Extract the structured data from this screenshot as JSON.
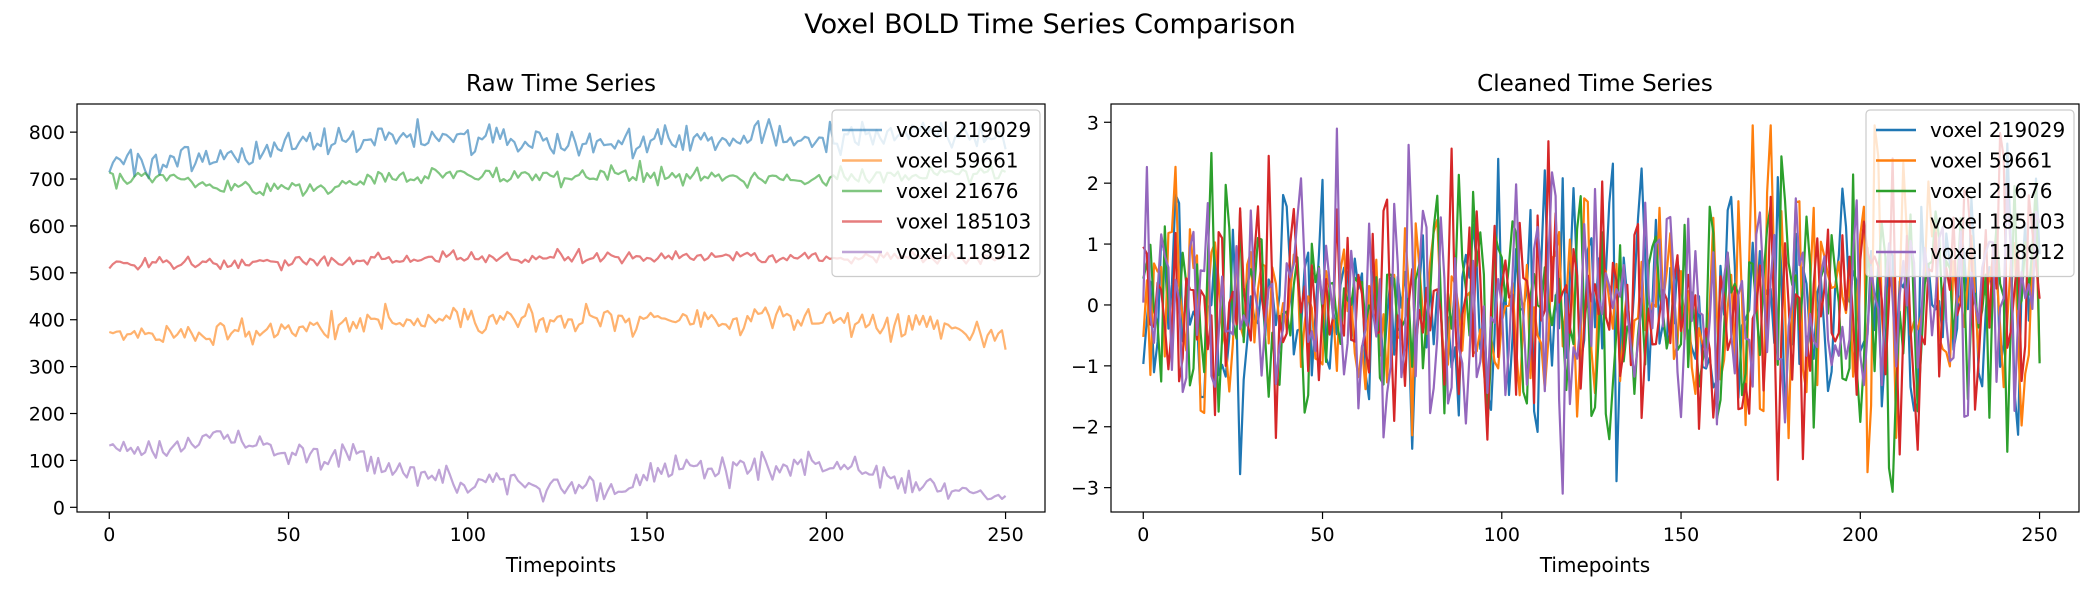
{
  "suptitle": "Voxel BOLD Time Series Comparison",
  "chart_data": [
    {
      "type": "line",
      "title": "Raw Time Series",
      "xlabel": "Timepoints",
      "ylabel": "",
      "xlim": [
        -9,
        261
      ],
      "ylim": [
        -10,
        860
      ],
      "x_ticks": [
        0,
        50,
        100,
        150,
        200,
        250
      ],
      "y_ticks": [
        0,
        100,
        200,
        300,
        400,
        500,
        600,
        700,
        800
      ],
      "n_timepoints": 251,
      "line_alpha": 0.6,
      "legend_position": "upper right",
      "series": [
        {
          "name": "voxel 219029",
          "color": "#1f77b4",
          "mean": 775,
          "noise": 16,
          "trend": [
            [
              0,
              738
            ],
            [
              20,
              735
            ],
            [
              40,
              745
            ],
            [
              50,
              780
            ],
            [
              75,
              790
            ],
            [
              100,
              790
            ],
            [
              125,
              775
            ],
            [
              150,
              780
            ],
            [
              175,
              785
            ],
            [
              200,
              790
            ],
            [
              225,
              795
            ],
            [
              250,
              790
            ]
          ]
        },
        {
          "name": "voxel 59661",
          "color": "#ff7f0e",
          "mean": 390,
          "noise": 13,
          "trend": [
            [
              0,
              368
            ],
            [
              25,
              368
            ],
            [
              50,
              378
            ],
            [
              75,
              395
            ],
            [
              100,
              402
            ],
            [
              125,
              400
            ],
            [
              150,
              402
            ],
            [
              175,
              402
            ],
            [
              200,
              400
            ],
            [
              225,
              392
            ],
            [
              250,
              370
            ]
          ]
        },
        {
          "name": "voxel 21676",
          "color": "#2ca02c",
          "mean": 700,
          "noise": 9,
          "trend": [
            [
              0,
              706
            ],
            [
              20,
              698
            ],
            [
              40,
              680
            ],
            [
              60,
              682
            ],
            [
              75,
              705
            ],
            [
              100,
              712
            ],
            [
              125,
              705
            ],
            [
              150,
              706
            ],
            [
              175,
              700
            ],
            [
              200,
              700
            ],
            [
              225,
              705
            ],
            [
              250,
              715
            ]
          ]
        },
        {
          "name": "voxel 185103",
          "color": "#d62728",
          "mean": 528,
          "noise": 7,
          "trend": [
            [
              0,
              520
            ],
            [
              25,
              520
            ],
            [
              50,
              525
            ],
            [
              100,
              530
            ],
            [
              150,
              533
            ],
            [
              200,
              532
            ],
            [
              250,
              532
            ]
          ]
        },
        {
          "name": "voxel 118912",
          "color": "#9467bd",
          "mean": 85,
          "noise": 14,
          "trend": [
            [
              0,
              118
            ],
            [
              15,
              125
            ],
            [
              30,
              140
            ],
            [
              45,
              115
            ],
            [
              70,
              110
            ],
            [
              80,
              75
            ],
            [
              100,
              55
            ],
            [
              125,
              45
            ],
            [
              145,
              40
            ],
            [
              150,
              80
            ],
            [
              175,
              85
            ],
            [
              200,
              90
            ],
            [
              220,
              60
            ],
            [
              235,
              35
            ],
            [
              250,
              20
            ]
          ]
        }
      ]
    },
    {
      "type": "line",
      "title": "Cleaned Time Series",
      "xlabel": "Timepoints",
      "ylabel": "",
      "xlim": [
        -9,
        261
      ],
      "ylim": [
        -3.4,
        3.3
      ],
      "x_ticks": [
        0,
        50,
        100,
        150,
        200,
        250
      ],
      "y_ticks": [
        -3,
        -2,
        -1,
        0,
        1,
        2,
        3
      ],
      "n_timepoints": 251,
      "line_alpha": 1.0,
      "legend_position": "upper right",
      "series": [
        {
          "name": "voxel 219029",
          "color": "#1f77b4"
        },
        {
          "name": "voxel 59661",
          "color": "#ff7f0e"
        },
        {
          "name": "voxel 21676",
          "color": "#2ca02c"
        },
        {
          "name": "voxel 185103",
          "color": "#d62728"
        },
        {
          "name": "voxel 118912",
          "color": "#9467bd"
        }
      ]
    }
  ]
}
